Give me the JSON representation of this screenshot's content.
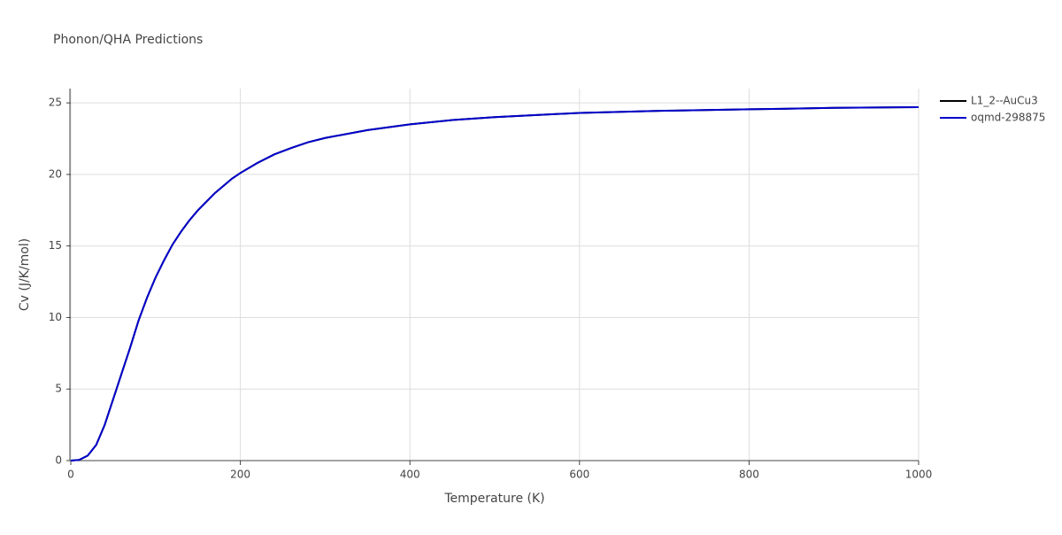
{
  "chart_data": {
    "type": "line",
    "title": "Phonon/QHA Predictions",
    "x_label": "Temperature (K)",
    "y_label": "Cv (J/K/mol)",
    "x": [
      0,
      10,
      20,
      30,
      40,
      50,
      60,
      70,
      80,
      90,
      100,
      110,
      120,
      130,
      140,
      150,
      160,
      170,
      180,
      190,
      200,
      220,
      240,
      260,
      280,
      300,
      350,
      400,
      450,
      500,
      600,
      700,
      800,
      900,
      1000
    ],
    "series": [
      {
        "name": "L1_2--AuCu3",
        "color": "#000000",
        "values": [
          0,
          0.05,
          0.35,
          1.1,
          2.5,
          4.3,
          6.1,
          7.9,
          9.8,
          11.4,
          12.8,
          14.0,
          15.1,
          16.0,
          16.8,
          17.5,
          18.1,
          18.7,
          19.2,
          19.7,
          20.1,
          20.8,
          21.4,
          21.85,
          22.25,
          22.55,
          23.1,
          23.5,
          23.8,
          24.0,
          24.3,
          24.45,
          24.55,
          24.65,
          24.7
        ]
      },
      {
        "name": "oqmd-298875",
        "color": "#0000cc",
        "values": [
          0,
          0.05,
          0.35,
          1.1,
          2.5,
          4.3,
          6.1,
          7.9,
          9.8,
          11.4,
          12.8,
          14.0,
          15.1,
          16.0,
          16.8,
          17.5,
          18.1,
          18.7,
          19.2,
          19.7,
          20.1,
          20.8,
          21.4,
          21.85,
          22.25,
          22.55,
          23.1,
          23.5,
          23.8,
          24.0,
          24.3,
          24.45,
          24.55,
          24.65,
          24.7
        ]
      }
    ],
    "xlim": [
      0,
      1000
    ],
    "xticks": [
      0,
      200,
      400,
      600,
      800,
      1000
    ],
    "ylim": [
      0,
      26
    ],
    "yticks": [
      0,
      5,
      10,
      15,
      20,
      25
    ],
    "grid": true
  }
}
